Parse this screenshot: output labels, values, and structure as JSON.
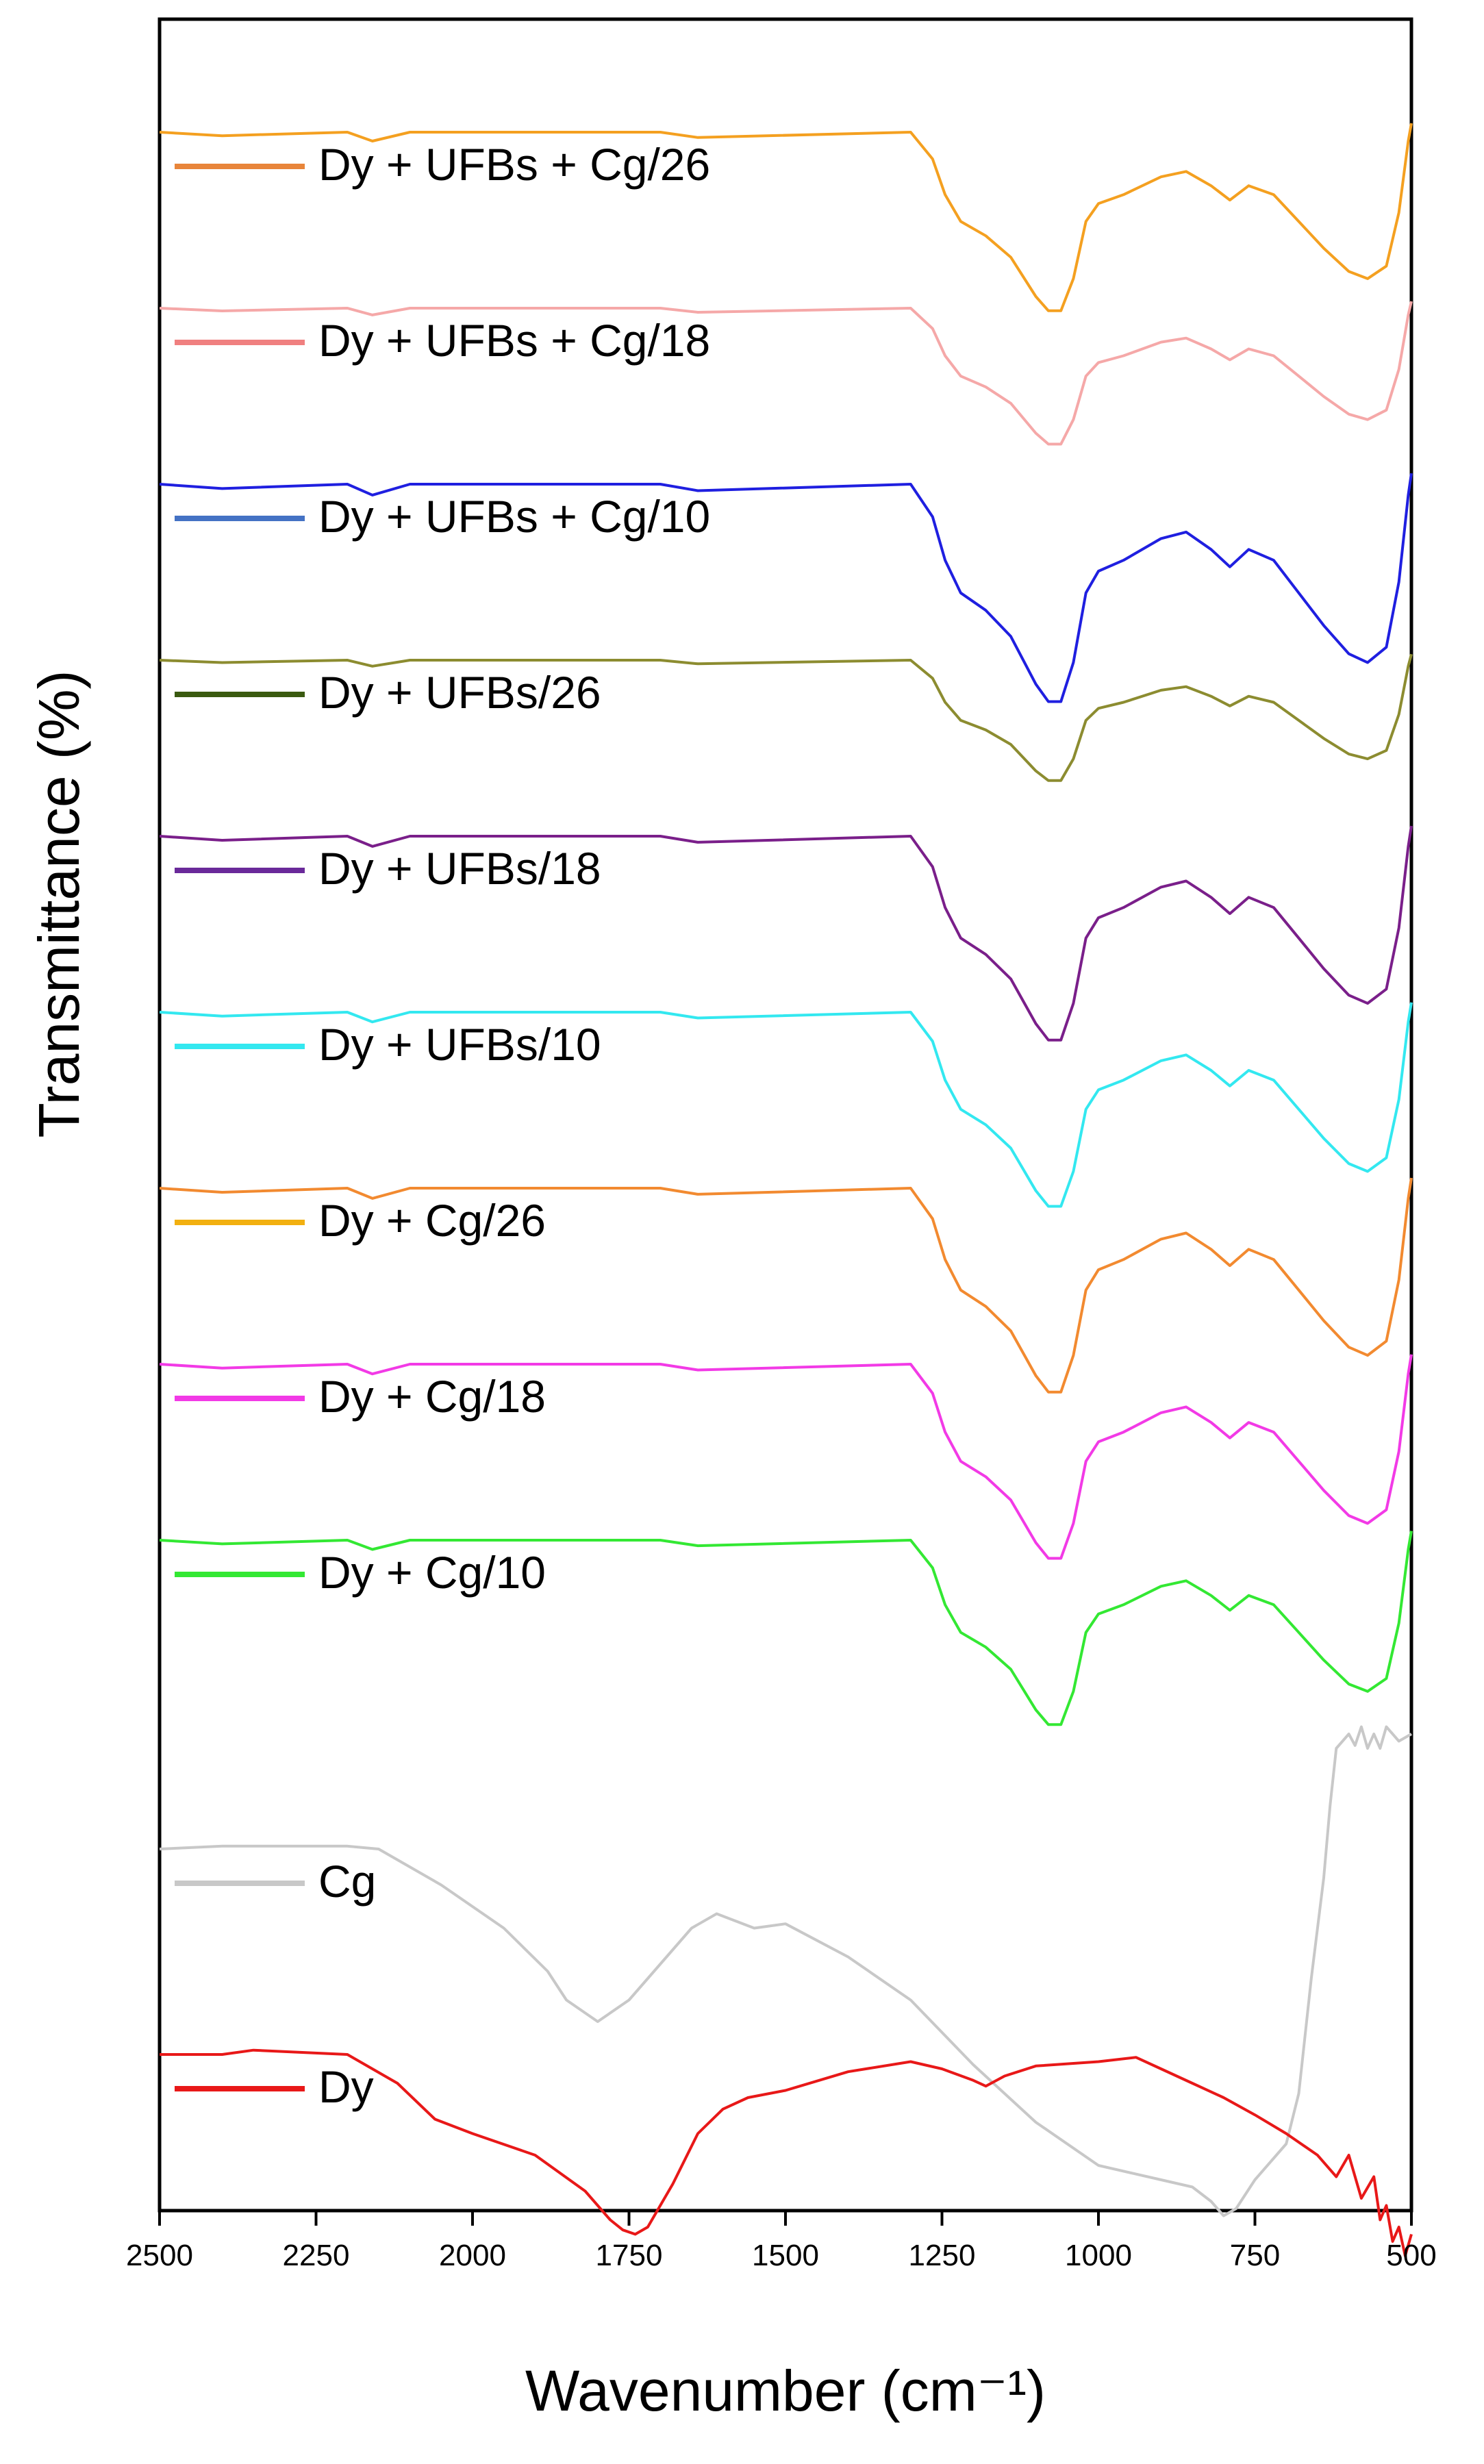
{
  "chart_data": {
    "type": "line",
    "title": "",
    "xlabel": "Wavenumber (cm⁻¹)",
    "ylabel": "Transmittance (%)",
    "xlim": [
      2500,
      500
    ],
    "x_reversed": true,
    "y_units": "arbitrary (stacked, offset spectra)",
    "grid": false,
    "legend_position": "left, each label beside its curve",
    "xticks": [
      2500,
      2250,
      2000,
      1750,
      1500,
      1250,
      1000,
      750,
      500
    ],
    "xtick_labels": [
      "2500",
      "2250",
      "2000",
      "1750",
      "1500",
      "1250",
      "1000",
      "750",
      "500"
    ],
    "series": [
      {
        "name": "Dy + UFBs + Cg/26",
        "color": "#f4a020",
        "legend_color": "#e8853a",
        "offset": 11,
        "scale": 0.92,
        "profile": "treated"
      },
      {
        "name": "Dy + UFBs + Cg/18",
        "color": "#f5a8a8",
        "legend_color": "#f08080",
        "offset": 10,
        "scale": 0.7,
        "profile": "treated"
      },
      {
        "name": "Dy + UFBs + Cg/10",
        "color": "#1f1fe0",
        "legend_color": "#4472c4",
        "offset": 9,
        "scale": 1.12,
        "profile": "treated"
      },
      {
        "name": "Dy + UFBs/26",
        "color": "#8c8c30",
        "legend_color": "#3a5a10",
        "offset": 8,
        "scale": 0.62,
        "profile": "treated"
      },
      {
        "name": "Dy + UFBs/18",
        "color": "#7a1f8a",
        "legend_color": "#6a2a9a",
        "offset": 7,
        "scale": 1.05,
        "profile": "treated"
      },
      {
        "name": "Dy + UFBs/10",
        "color": "#33e8f0",
        "legend_color": "#33e8f0",
        "offset": 6,
        "scale": 1.0,
        "profile": "treated"
      },
      {
        "name": "Dy + Cg/26",
        "color": "#f28a30",
        "legend_color": "#f2b010",
        "offset": 5,
        "scale": 1.05,
        "profile": "treated"
      },
      {
        "name": "Dy + Cg/18",
        "color": "#f23ae6",
        "legend_color": "#f23ae6",
        "offset": 4,
        "scale": 1.0,
        "profile": "treated"
      },
      {
        "name": "Dy + Cg/10",
        "color": "#33e833",
        "legend_color": "#33e833",
        "offset": 3,
        "scale": 0.95,
        "profile": "treated"
      },
      {
        "name": "Cg",
        "color": "#c8c8c8",
        "legend_color": "#c8c8c8",
        "offset": 2,
        "scale": 1.0,
        "profile": "cg"
      },
      {
        "name": "Dy",
        "color": "#e81818",
        "legend_color": "#e81818",
        "offset": 1,
        "scale": 1.0,
        "profile": "dy"
      }
    ],
    "profiles": {
      "treated": {
        "x": [
          2500,
          2400,
          2200,
          2160,
          2100,
          1700,
          1640,
          1300,
          1265,
          1245,
          1220,
          1180,
          1140,
          1100,
          1080,
          1060,
          1040,
          1020,
          1000,
          960,
          900,
          860,
          820,
          790,
          760,
          720,
          680,
          640,
          600,
          570,
          540,
          520,
          505,
          500
        ],
        "y": [
          0,
          -0.02,
          0,
          -0.05,
          0,
          0,
          -0.03,
          0,
          -0.15,
          -0.35,
          -0.5,
          -0.58,
          -0.7,
          -0.92,
          -1.0,
          -1.0,
          -0.82,
          -0.5,
          -0.4,
          -0.35,
          -0.25,
          -0.22,
          -0.3,
          -0.38,
          -0.3,
          -0.35,
          -0.5,
          -0.65,
          -0.78,
          -0.82,
          -0.75,
          -0.45,
          -0.05,
          0.05
        ]
      },
      "cg": {
        "x": [
          2500,
          2400,
          2200,
          2150,
          2050,
          1950,
          1880,
          1850,
          1800,
          1750,
          1700,
          1650,
          1610,
          1580,
          1550,
          1500,
          1400,
          1300,
          1200,
          1100,
          1000,
          900,
          850,
          820,
          800,
          780,
          750,
          700,
          680,
          660,
          640,
          630,
          620,
          600,
          590,
          580,
          570,
          560,
          550,
          540,
          520,
          500
        ],
        "y": [
          0,
          0.02,
          0.02,
          0,
          -0.25,
          -0.55,
          -0.85,
          -1.05,
          -1.2,
          -1.05,
          -0.8,
          -0.55,
          -0.45,
          -0.5,
          -0.55,
          -0.52,
          -0.75,
          -1.05,
          -1.5,
          -1.9,
          -2.2,
          -2.3,
          -2.35,
          -2.45,
          -2.55,
          -2.5,
          -2.3,
          -2.05,
          -1.7,
          -0.9,
          -0.2,
          0.3,
          0.7,
          0.8,
          0.72,
          0.85,
          0.7,
          0.8,
          0.7,
          0.85,
          0.75,
          0.8
        ]
      },
      "dy": {
        "x": [
          2500,
          2400,
          2350,
          2200,
          2120,
          2060,
          2000,
          1900,
          1820,
          1780,
          1760,
          1740,
          1720,
          1680,
          1640,
          1600,
          1560,
          1500,
          1400,
          1300,
          1250,
          1200,
          1180,
          1150,
          1100,
          1000,
          940,
          900,
          850,
          800,
          750,
          700,
          650,
          620,
          600,
          580,
          560,
          550,
          540,
          530,
          520,
          510,
          500
        ],
        "y": [
          0,
          0,
          0.03,
          0,
          -0.2,
          -0.45,
          -0.55,
          -0.7,
          -0.95,
          -1.15,
          -1.22,
          -1.25,
          -1.2,
          -0.9,
          -0.55,
          -0.38,
          -0.3,
          -0.25,
          -0.12,
          -0.05,
          -0.1,
          -0.18,
          -0.22,
          -0.15,
          -0.08,
          -0.05,
          -0.02,
          -0.1,
          -0.2,
          -0.3,
          -0.42,
          -0.55,
          -0.7,
          -0.85,
          -0.7,
          -1.0,
          -0.85,
          -1.15,
          -1.05,
          -1.3,
          -1.2,
          -1.4,
          -1.25
        ]
      }
    }
  }
}
